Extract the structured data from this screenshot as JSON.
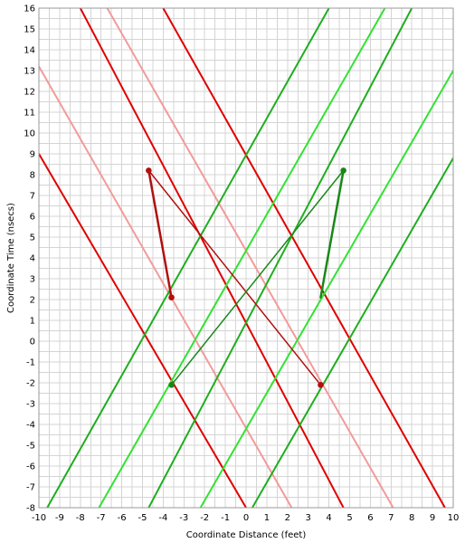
{
  "chart_data": {
    "type": "line",
    "title": "",
    "xlabel": "Coordinate Distance (feet)",
    "ylabel": "Coordinate Time (nsecs)",
    "xlim": [
      -10,
      10
    ],
    "ylim": [
      -8,
      16
    ],
    "xticks": [
      -10,
      -9,
      -8,
      -7,
      -6,
      -5,
      -4,
      -3,
      -2,
      -1,
      0,
      1,
      2,
      3,
      4,
      5,
      6,
      7,
      8,
      9,
      10
    ],
    "yticks": [
      -8,
      -7,
      -6,
      -5,
      -4,
      -3,
      -2,
      -1,
      0,
      1,
      2,
      3,
      4,
      5,
      6,
      7,
      8,
      9,
      10,
      11,
      12,
      13,
      14,
      15,
      16
    ],
    "grid": true,
    "legend": "none",
    "colors": {
      "red": "#e00000",
      "pink": "#f39a9a",
      "green": "#1fae1f",
      "light_green": "#33e233",
      "dark_red": "#b01010",
      "dark_green": "#188818"
    },
    "series": [
      {
        "style": "red",
        "x": [
          -10,
          0
        ],
        "y": [
          9,
          -8
        ]
      },
      {
        "style": "red",
        "x": [
          -8,
          4.7
        ],
        "y": [
          16,
          -8
        ]
      },
      {
        "style": "red",
        "x": [
          -4,
          9.6
        ],
        "y": [
          16,
          -8
        ]
      },
      {
        "style": "pink",
        "x": [
          -10,
          2.2
        ],
        "y": [
          13.2,
          -8
        ]
      },
      {
        "style": "pink",
        "x": [
          -6.7,
          7.1
        ],
        "y": [
          16,
          -8
        ]
      },
      {
        "style": "green",
        "x": [
          -9.6,
          4
        ],
        "y": [
          -8,
          16
        ]
      },
      {
        "style": "green",
        "x": [
          -4.7,
          8
        ],
        "y": [
          -8,
          16
        ]
      },
      {
        "style": "green",
        "x": [
          0.3,
          10
        ],
        "y": [
          -8,
          8.8
        ]
      },
      {
        "style": "light_green",
        "x": [
          -7.1,
          6.7
        ],
        "y": [
          -8,
          16
        ]
      },
      {
        "style": "light_green",
        "x": [
          -2.2,
          10
        ],
        "y": [
          -8,
          13
        ]
      },
      {
        "style": "dark_red",
        "x": [
          -4.7,
          -3.6
        ],
        "y": [
          8.2,
          2.1
        ],
        "width": 2.5
      },
      {
        "style": "dark_red",
        "x": [
          -4.7,
          3.6
        ],
        "y": [
          8.2,
          -2.1
        ],
        "width": 1.5
      },
      {
        "style": "dark_green",
        "x": [
          4.7,
          3.6
        ],
        "y": [
          8.2,
          2.1
        ],
        "width": 2.5
      },
      {
        "style": "dark_green",
        "x": [
          4.7,
          -3.6
        ],
        "y": [
          8.2,
          -2.1
        ],
        "width": 1.5
      }
    ],
    "points": [
      {
        "style": "dark_red",
        "x": -4.7,
        "y": 8.2
      },
      {
        "style": "dark_red",
        "x": -3.6,
        "y": 2.1
      },
      {
        "style": "dark_red",
        "x": 3.6,
        "y": -2.1
      },
      {
        "style": "dark_green",
        "x": 4.7,
        "y": 8.2
      },
      {
        "style": "dark_green",
        "x": -3.6,
        "y": -2.1
      }
    ]
  }
}
